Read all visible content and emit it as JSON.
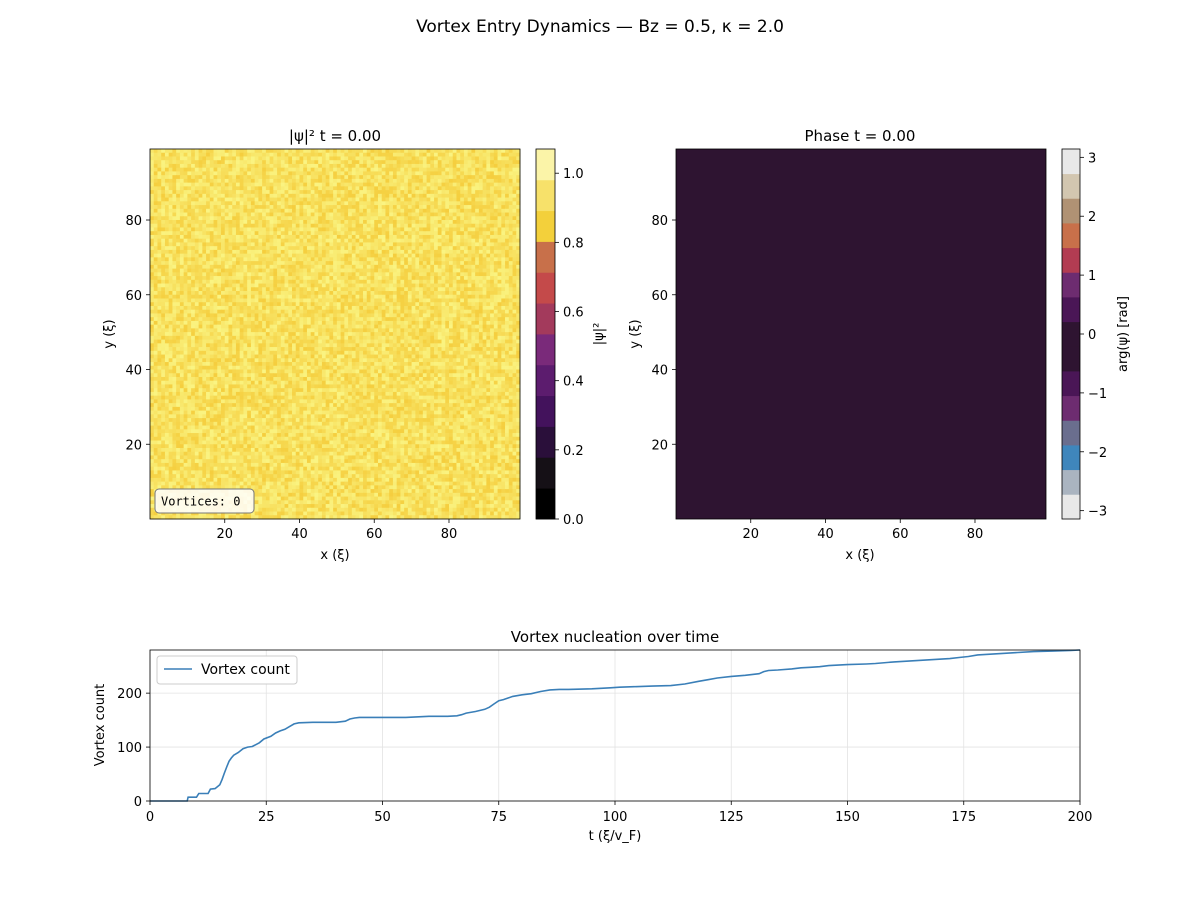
{
  "suptitle": "Vortex Entry Dynamics — Bz = 0.5, κ = 2.0",
  "chart_data": [
    {
      "type": "heatmap",
      "title": "|ψ|²  t = 0.00",
      "xlabel": "x (ξ)",
      "ylabel": "y (ξ)",
      "xlim": [
        0,
        99
      ],
      "ylim": [
        0,
        99
      ],
      "x_ticks": [
        20,
        40,
        60,
        80
      ],
      "y_ticks": [
        20,
        40,
        60,
        80
      ],
      "grid_size": [
        99,
        99
      ],
      "value_range": [
        0.94,
        1.06
      ],
      "annotation": "Vortices: 0",
      "colorbar": {
        "label": "|ψ|²",
        "range": [
          0.0,
          1.07
        ],
        "ticks": [
          "0.0",
          "0.2",
          "0.4",
          "0.6",
          "0.8",
          "1.0"
        ],
        "colors": [
          "#000000",
          "#151016",
          "#2a0f3a",
          "#43125c",
          "#5c1c6e",
          "#7a2a7a",
          "#a33a5c",
          "#c44a4a",
          "#c8704a",
          "#f3d03b",
          "#f7e16a",
          "#fbf4a8"
        ]
      }
    },
    {
      "type": "heatmap",
      "title": "Phase  t = 0.00",
      "xlabel": "x (ξ)",
      "ylabel": "y (ξ)",
      "xlim": [
        0,
        99
      ],
      "ylim": [
        0,
        99
      ],
      "x_ticks": [
        20,
        40,
        60,
        80
      ],
      "y_ticks": [
        20,
        40,
        60,
        80
      ],
      "uniform_value": 0.0,
      "fill_color": "#2e1431",
      "colorbar": {
        "label": "arg(ψ) [rad]",
        "range": [
          -3.14159,
          3.14159
        ],
        "ticks": [
          "−3",
          "−2",
          "−1",
          "0",
          "1",
          "2",
          "3"
        ],
        "colors": [
          "#e8e8e8",
          "#aab4c0",
          "#3f86bc",
          "#6a6e8e",
          "#6d2c70",
          "#4a1656",
          "#2e1431",
          "#2e1431",
          "#4a1656",
          "#6d2c70",
          "#b23c52",
          "#c8704a",
          "#b09274",
          "#d2c6b0",
          "#e8e8e8"
        ]
      }
    },
    {
      "type": "line",
      "title": "Vortex nucleation over time",
      "xlabel": "t (ξ/v_F)",
      "ylabel": "Vortex count",
      "xlim": [
        0,
        200
      ],
      "ylim": [
        0,
        280
      ],
      "x_ticks": [
        "0",
        "25",
        "50",
        "75",
        "100",
        "125",
        "150",
        "175",
        "200"
      ],
      "y_ticks": [
        "0",
        "100",
        "200"
      ],
      "grid": true,
      "legend_position": "top-left",
      "series": [
        {
          "name": "Vortex count",
          "color": "#3a7fb8",
          "x": [
            0,
            8,
            8.2,
            10,
            10.5,
            12.5,
            13,
            14,
            15,
            15.5,
            16,
            16.5,
            17,
            17.5,
            18,
            19,
            20,
            21,
            22,
            23.5,
            24.5,
            26,
            27,
            28,
            29,
            30,
            31,
            32,
            35,
            40,
            42,
            43,
            44,
            45,
            50,
            55,
            60,
            64,
            66,
            67,
            68,
            70,
            72,
            73,
            74,
            75,
            76,
            77,
            78,
            80,
            82,
            84,
            86,
            88,
            90,
            95,
            99,
            101,
            104,
            108,
            112,
            115,
            118,
            120,
            122,
            125,
            128,
            131,
            132,
            133,
            135,
            138,
            140,
            142,
            144,
            146,
            150,
            154,
            156,
            160,
            164,
            168,
            172,
            174,
            176,
            178,
            182,
            186,
            190,
            194,
            198,
            200
          ],
          "y": [
            0,
            0,
            7,
            7,
            14,
            14,
            22,
            23,
            30,
            40,
            52,
            63,
            74,
            80,
            85,
            90,
            97,
            100,
            101,
            108,
            115,
            120,
            126,
            130,
            133,
            138,
            143,
            145,
            146,
            146,
            148,
            152,
            154,
            155,
            155,
            155,
            157,
            157,
            158,
            160,
            163,
            166,
            170,
            174,
            180,
            186,
            188,
            191,
            194,
            197,
            199,
            203,
            206,
            207,
            207,
            208,
            210,
            211,
            212,
            213,
            214,
            217,
            222,
            225,
            228,
            231,
            233,
            236,
            240,
            242,
            243,
            245,
            247,
            248,
            249,
            251,
            253,
            254,
            255,
            258,
            260,
            262,
            264,
            266,
            268,
            271,
            273,
            275,
            277,
            278,
            279,
            280
          ]
        }
      ]
    }
  ]
}
